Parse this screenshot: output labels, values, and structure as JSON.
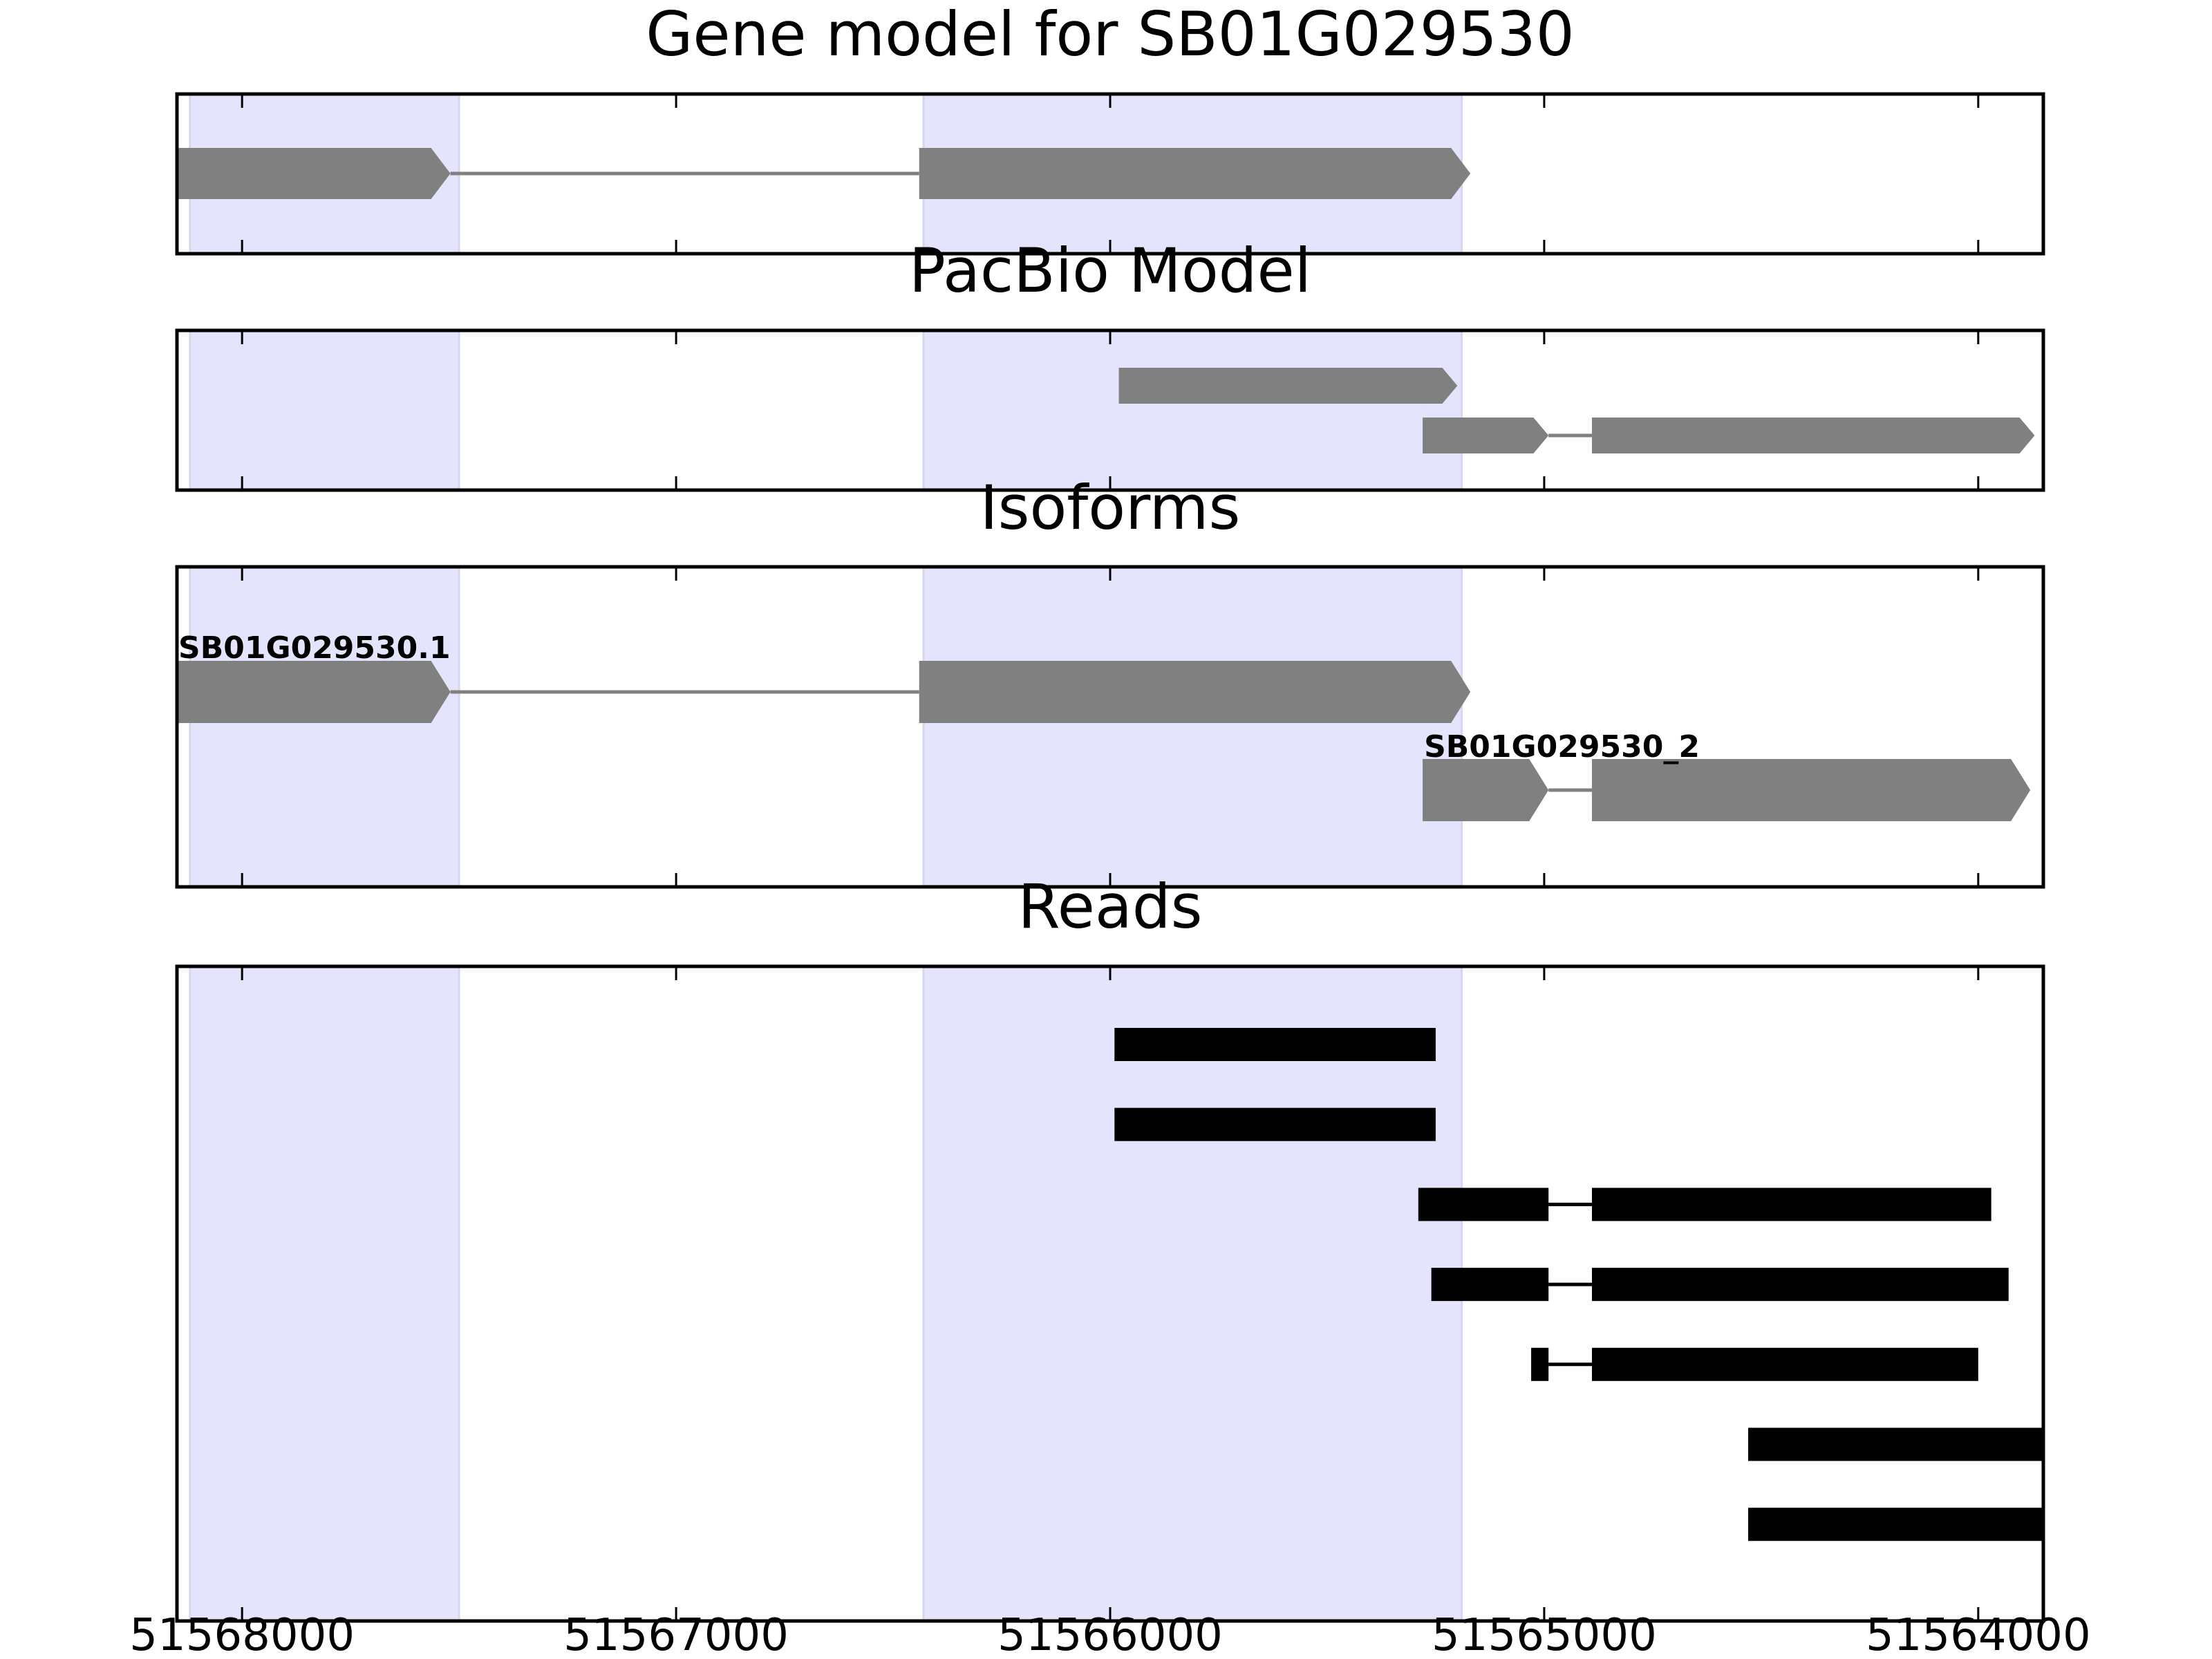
{
  "chart_data": {
    "type": "gene-track",
    "x_axis": {
      "range": [
        51568150,
        51563850
      ],
      "ticks": [
        51568000,
        51567000,
        51566000,
        51565000,
        51564000
      ],
      "tick_labels": [
        "51568000",
        "51567000",
        "51566000",
        "51565000",
        "51564000"
      ]
    },
    "highlight_color": "#e4e4fc",
    "highlight_regions": [
      [
        51568120,
        51567500
      ],
      [
        51566430,
        51565190
      ]
    ],
    "panels": [
      {
        "id": "gene-model",
        "title": "Gene model for SB01G029530",
        "feature_color": "#808080",
        "transcripts": [
          {
            "label": "",
            "exons": [
              [
                51568150,
                51567520
              ],
              [
                51566440,
                51565170
              ]
            ]
          }
        ]
      },
      {
        "id": "pacbio-model",
        "title": "PacBio Model",
        "feature_color": "#808080",
        "transcripts": [
          {
            "label": "",
            "exons": [
              [
                51565980,
                51565200
              ]
            ]
          },
          {
            "label": "",
            "exons": [
              [
                51565280,
                51564990
              ],
              [
                51564890,
                51563870
              ]
            ]
          }
        ]
      },
      {
        "id": "isoforms",
        "title": "Isoforms",
        "feature_color": "#808080",
        "transcripts": [
          {
            "label": "SB01G029530.1",
            "exons": [
              [
                51568150,
                51567520
              ],
              [
                51566440,
                51565170
              ]
            ]
          },
          {
            "label": "SB01G029530_2",
            "exons": [
              [
                51565280,
                51564990
              ],
              [
                51564890,
                51563880
              ]
            ]
          }
        ]
      },
      {
        "id": "reads",
        "title": "Reads",
        "feature_color": "#000000",
        "reads": [
          {
            "exons": [
              [
                51565990,
                51565250
              ]
            ]
          },
          {
            "exons": [
              [
                51565990,
                51565250
              ]
            ]
          },
          {
            "exons": [
              [
                51565290,
                51564990
              ],
              [
                51564890,
                51563970
              ]
            ]
          },
          {
            "exons": [
              [
                51565260,
                51564990
              ],
              [
                51564890,
                51563930
              ]
            ]
          },
          {
            "exons": [
              [
                51565030,
                51564990
              ],
              [
                51564890,
                51564000
              ]
            ]
          },
          {
            "exons": [
              [
                51564530,
                51563850
              ]
            ]
          },
          {
            "exons": [
              [
                51564530,
                51563850
              ]
            ]
          }
        ]
      }
    ]
  }
}
